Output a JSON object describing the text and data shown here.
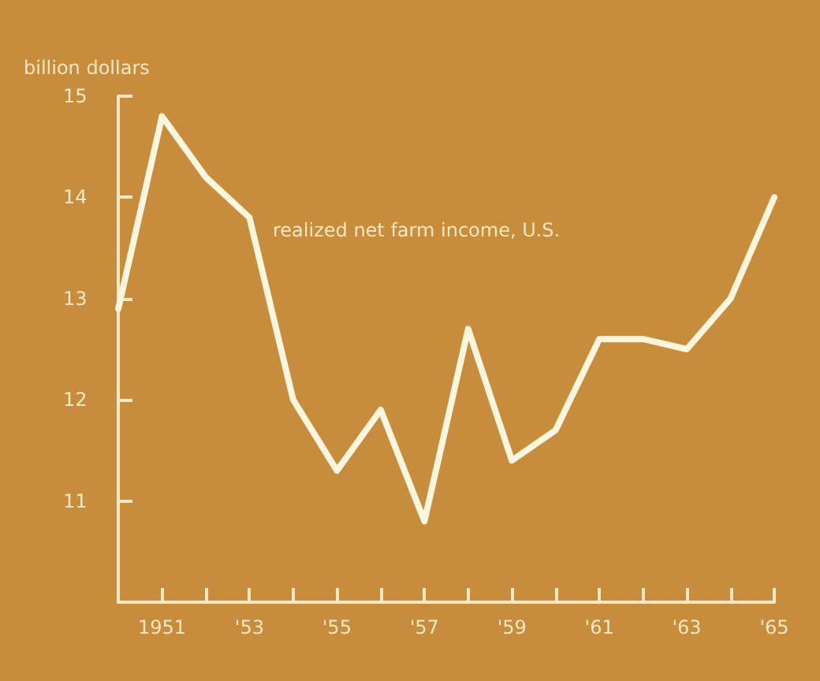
{
  "chart_data": {
    "type": "line",
    "ylabel": "billion dollars",
    "annotations": [
      "realized net farm income, U.S."
    ],
    "x": [
      1950,
      1951,
      1952,
      1953,
      1954,
      1955,
      1956,
      1957,
      1958,
      1959,
      1960,
      1961,
      1962,
      1963,
      1964,
      1965
    ],
    "series": [
      {
        "color": "#fff4dc",
        "values": [
          12.9,
          14.8,
          14.2,
          13.8,
          12.0,
          11.3,
          11.9,
          10.8,
          12.7,
          11.4,
          11.7,
          12.6,
          12.6,
          12.5,
          13.0,
          14.0
        ]
      }
    ],
    "xlim": [
      1950,
      1965
    ],
    "xticks": [
      {
        "value": 1951,
        "label": "1951"
      },
      {
        "value": 1952,
        "label": null
      },
      {
        "value": 1953,
        "label": "'53"
      },
      {
        "value": 1954,
        "label": null
      },
      {
        "value": 1955,
        "label": "'55"
      },
      {
        "value": 1956,
        "label": null
      },
      {
        "value": 1957,
        "label": "'57"
      },
      {
        "value": 1958,
        "label": null
      },
      {
        "value": 1959,
        "label": "'59"
      },
      {
        "value": 1960,
        "label": null
      },
      {
        "value": 1961,
        "label": "'61"
      },
      {
        "value": 1962,
        "label": null
      },
      {
        "value": 1963,
        "label": "'63"
      },
      {
        "value": 1964,
        "label": null
      },
      {
        "value": 1965,
        "label": "'65"
      }
    ],
    "ylim": [
      10,
      15
    ],
    "yticks": [
      11,
      12,
      13,
      14,
      15
    ],
    "marker": "none",
    "line_style": "solid"
  }
}
